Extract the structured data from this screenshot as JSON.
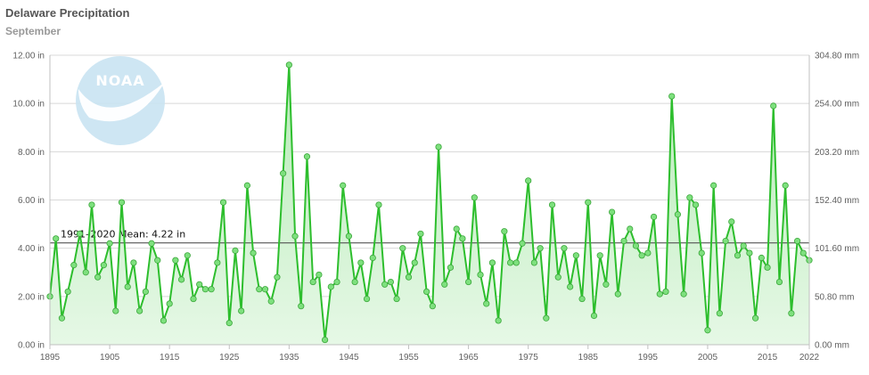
{
  "header": {
    "title": "Delaware Precipitation",
    "subtitle": "September"
  },
  "logo": {
    "text": "NOAA"
  },
  "colors": {
    "line": "#2dbe2d",
    "area_top": "#b6ebb6",
    "area_bottom": "#e6f8e6",
    "marker": "#7ee07e",
    "marker_stroke": "#3aa63a",
    "mean_line": "#555555",
    "grid": "#d8d8d8",
    "logo_bg": "#c9e3f2"
  },
  "chart_data": {
    "type": "area",
    "title": "Delaware Precipitation",
    "subtitle": "September",
    "x_start": 1895,
    "x_end": 2022,
    "xlim": [
      1895,
      2022
    ],
    "ylim": [
      0,
      12
    ],
    "x_ticks": [
      1895,
      1905,
      1915,
      1925,
      1935,
      1945,
      1955,
      1965,
      1975,
      1985,
      1995,
      2005,
      2015,
      2022
    ],
    "y_ticks_left": [
      "0.00 in",
      "2.00 in",
      "4.00 in",
      "6.00 in",
      "8.00 in",
      "10.00 in",
      "12.00 in"
    ],
    "y_ticks_right": [
      "0.00 mm",
      "50.80 mm",
      "101.60 mm",
      "152.40 mm",
      "203.20 mm",
      "254.00 mm",
      "304.80 mm"
    ],
    "grid": true,
    "mean": {
      "label": "1991–2020 Mean: 4.22 in",
      "value": 4.22
    },
    "series": [
      {
        "values": [
          2.0,
          4.4,
          1.1,
          2.2,
          3.3,
          4.6,
          3.0,
          5.8,
          2.8,
          3.3,
          4.2,
          1.4,
          5.9,
          2.4,
          3.4,
          1.4,
          2.2,
          4.2,
          3.5,
          1.0,
          1.7,
          3.5,
          2.7,
          3.7,
          1.9,
          2.5,
          2.3,
          2.3,
          3.4,
          5.9,
          0.9,
          3.9,
          1.4,
          6.6,
          3.8,
          2.3,
          2.3,
          1.8,
          2.8,
          7.1,
          11.6,
          4.5,
          1.6,
          7.8,
          2.6,
          2.9,
          0.2,
          2.4,
          2.6,
          6.6,
          4.5,
          2.6,
          3.4,
          1.9,
          3.6,
          5.8,
          2.5,
          2.6,
          1.9,
          4.0,
          2.8,
          3.4,
          4.6,
          2.2,
          1.6,
          8.2,
          2.5,
          3.2,
          4.8,
          4.4,
          2.6,
          6.1,
          2.9,
          1.7,
          3.4,
          1.0,
          4.7,
          3.4,
          3.4,
          4.2,
          6.8,
          3.4,
          4.0,
          1.1,
          5.8,
          2.8,
          4.0,
          2.4,
          3.7,
          1.9,
          5.9,
          1.2,
          3.7,
          2.5,
          5.5,
          2.1,
          4.3,
          4.8,
          4.1,
          3.7,
          3.8,
          5.3,
          2.1,
          2.2,
          10.3,
          5.4,
          2.1,
          6.1,
          5.8,
          3.8,
          0.6,
          6.6,
          1.3,
          4.3,
          5.1,
          3.7,
          4.1,
          3.8,
          1.1,
          3.6,
          3.2,
          9.9,
          2.6,
          6.6,
          1.3,
          4.3,
          3.8,
          3.5
        ]
      }
    ]
  }
}
